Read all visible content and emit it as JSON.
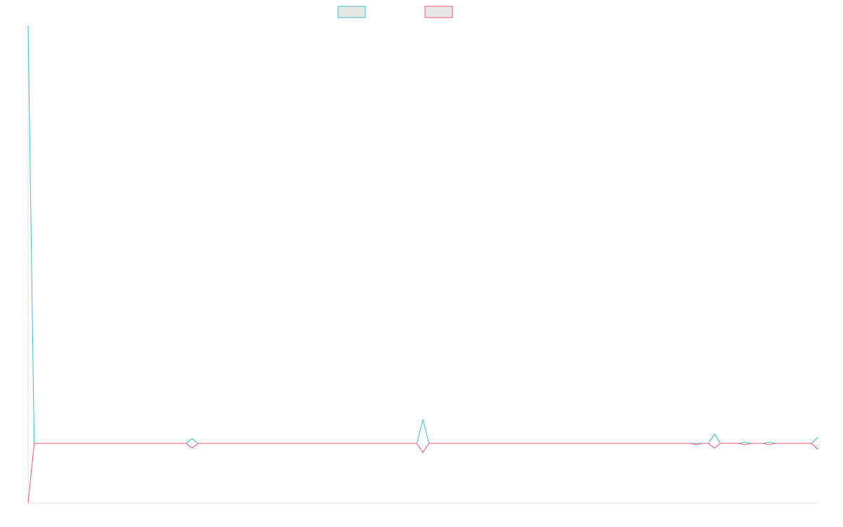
{
  "chart_data": {
    "type": "line",
    "title": "",
    "xlabel": "",
    "ylabel": "",
    "legend": {
      "position": "top-center"
    },
    "grid": false,
    "x": [
      0,
      1,
      2,
      3,
      4,
      5,
      6,
      7,
      8,
      9,
      10,
      11,
      12,
      13,
      14,
      15,
      16,
      17,
      18,
      19,
      20,
      21,
      22,
      23,
      24,
      25,
      26,
      27,
      28,
      29,
      30,
      31,
      32,
      33,
      34,
      35,
      36,
      37,
      38,
      39,
      40,
      41,
      42,
      43,
      44,
      45,
      46,
      47,
      48,
      49,
      50,
      51,
      52,
      53,
      54,
      55,
      56,
      57,
      58,
      59,
      60,
      61,
      62,
      63,
      64,
      65,
      66,
      67,
      68,
      69,
      70,
      71,
      72,
      73,
      74,
      75,
      76,
      77,
      78,
      79,
      80,
      81,
      82,
      83,
      84,
      85,
      86,
      87,
      88,
      89,
      90,
      91,
      92,
      93,
      94,
      95,
      96,
      97,
      98,
      99,
      100,
      101,
      102,
      103,
      104,
      105,
      106,
      107,
      108,
      109,
      110,
      111,
      112,
      113,
      114,
      115,
      116,
      117,
      118,
      119,
      120,
      121,
      122,
      123,
      124,
      125,
      126,
      127,
      128,
      129,
      130
    ],
    "ylim": [
      -1,
      7
    ],
    "series": [
      {
        "color": "#3cc0c6",
        "values": [
          7,
          0,
          0,
          0,
          0,
          0,
          0,
          0,
          0,
          0,
          0,
          0,
          0,
          0,
          0,
          0,
          0,
          0,
          0,
          0,
          0,
          0,
          0,
          0,
          0,
          0,
          0,
          0.08,
          0,
          0,
          0,
          0,
          0,
          0,
          0,
          0,
          0,
          0,
          0,
          0,
          0,
          0,
          0,
          0,
          0,
          0,
          0,
          0,
          0,
          0,
          0,
          0,
          0,
          0,
          0,
          0,
          0,
          0,
          0,
          0,
          0,
          0,
          0,
          0,
          0,
          0.4,
          0,
          0,
          0,
          0,
          0,
          0,
          0,
          0,
          0,
          0,
          0,
          0,
          0,
          0,
          0,
          0,
          0,
          0,
          0,
          0,
          0,
          0,
          0,
          0,
          0,
          0,
          0,
          0,
          0,
          0,
          0,
          0,
          0,
          0,
          0,
          0,
          0,
          0,
          0,
          0,
          0,
          0,
          0,
          0,
          0,
          0,
          0,
          0.16,
          0,
          0,
          0,
          0,
          0.02,
          0,
          0,
          0,
          0.02,
          0,
          0,
          0,
          0,
          0,
          0,
          0,
          0.1
        ]
      },
      {
        "color": "#ef5777",
        "values": [
          -1,
          0,
          0,
          0,
          0,
          0,
          0,
          0,
          0,
          0,
          0,
          0,
          0,
          0,
          0,
          0,
          0,
          0,
          0,
          0,
          0,
          0,
          0,
          0,
          0,
          0,
          0,
          -0.08,
          0,
          0,
          0,
          0,
          0,
          0,
          0,
          0,
          0,
          0,
          0,
          0,
          0,
          0,
          0,
          0,
          0,
          0,
          0,
          0,
          0,
          0,
          0,
          0,
          0,
          0,
          0,
          0,
          0,
          0,
          0,
          0,
          0,
          0,
          0,
          0,
          0,
          -0.15,
          0,
          0,
          0,
          0,
          0,
          0,
          0,
          0,
          0,
          0,
          0,
          0,
          0,
          0,
          0,
          0,
          0,
          0,
          0,
          0,
          0,
          0,
          0,
          0,
          0,
          0,
          0,
          0,
          0,
          0,
          0,
          0,
          0,
          0,
          0,
          0,
          0,
          0,
          0,
          0,
          0,
          0,
          0,
          0,
          -0.02,
          0,
          0,
          -0.08,
          0,
          0,
          0,
          0,
          -0.02,
          0,
          0,
          0,
          -0.02,
          0,
          0,
          0,
          0,
          0,
          0,
          0,
          -0.1
        ]
      }
    ]
  }
}
